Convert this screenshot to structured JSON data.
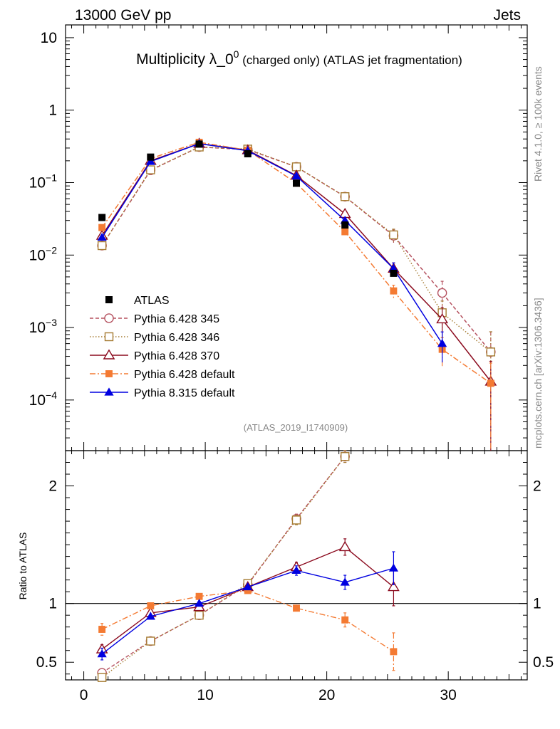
{
  "header": {
    "left_label": "13000 GeV pp",
    "right_label": "Jets",
    "title_main": "Multiplicity λ_0",
    "title_sup": "0",
    "title_tail": " (charged only) (ATLAS jet fragmentation)",
    "analysis_id": "(ATLAS_2019_I1740909)",
    "side_rivet": "Rivet 4.1.0, ≥ 100k events",
    "side_site": "mcplots.cern.ch [arXiv:1306.3436]"
  },
  "chart_data": {
    "type": "line",
    "title": "Multiplicity λ_0^0 (charged only) (ATLAS jet fragmentation)",
    "x": [
      1.5,
      5.5,
      9.5,
      13.5,
      17.5,
      21.5,
      25.5,
      29.5,
      33.5
    ],
    "x_ticks": [
      {
        "v": 0,
        "label": "0"
      },
      {
        "v": 10,
        "label": "10"
      },
      {
        "v": 20,
        "label": "20"
      },
      {
        "v": 30,
        "label": "30"
      }
    ],
    "xlim": [
      -1.5,
      36.5
    ],
    "main_panel": {
      "yscale": "log",
      "ylim": [
        2e-05,
        15
      ],
      "y_ticks": [
        {
          "v": 10,
          "base": "10",
          "exp": ""
        },
        {
          "v": 1,
          "base": "1",
          "exp": ""
        },
        {
          "v": 0.1,
          "base": "10",
          "exp": "−1"
        },
        {
          "v": 0.01,
          "base": "10",
          "exp": "−2"
        },
        {
          "v": 0.001,
          "base": "10",
          "exp": "−3"
        },
        {
          "v": 0.0001,
          "base": "10",
          "exp": "−4"
        }
      ]
    },
    "ratio_panel": {
      "ylabel": "Ratio to ATLAS",
      "ylim": [
        0.35,
        2.3
      ],
      "y_ticks": [
        {
          "v": 0.5,
          "label": "0.5"
        },
        {
          "v": 1,
          "label": "1"
        },
        {
          "v": 2,
          "label": "2"
        }
      ],
      "reference_line": 1
    },
    "data": {
      "name": "ATLAS",
      "values": [
        0.033,
        0.225,
        0.34,
        0.25,
        0.098,
        0.026,
        0.0056,
        null,
        null
      ],
      "color": "#000000"
    },
    "series": [
      {
        "name": "Pythia 6.428 345",
        "color": "#b5515f",
        "marker": "open-circle",
        "dash": "5,3",
        "values": [
          0.0135,
          0.148,
          0.31,
          0.285,
          0.165,
          0.064,
          0.0185,
          0.003,
          0.00046
        ],
        "ratio": [
          0.41,
          0.68,
          0.9,
          1.16,
          1.72,
          2.25,
          null,
          null,
          null
        ],
        "ratio_err": [
          0.02,
          0.02,
          0.02,
          0.02,
          0.04,
          0.05,
          null,
          null,
          null
        ]
      },
      {
        "name": "Pythia 6.428 346",
        "color": "#a67c33",
        "marker": "open-square",
        "dash": "1.5,2.5",
        "values": [
          0.0135,
          0.15,
          0.31,
          0.29,
          0.165,
          0.064,
          0.019,
          0.0016,
          0.00046
        ],
        "ratio": [
          0.37,
          0.68,
          0.9,
          1.17,
          1.71,
          2.25,
          null,
          null,
          null
        ],
        "ratio_err": [
          0.02,
          0.02,
          0.02,
          0.02,
          0.04,
          0.05,
          null,
          null,
          null
        ]
      },
      {
        "name": "Pythia 6.428 370",
        "color": "#8b0a1e",
        "marker": "open-triangle",
        "dash": "",
        "values": [
          0.0185,
          0.2,
          0.345,
          0.28,
          0.125,
          0.037,
          0.0065,
          0.0013,
          0.00018
        ],
        "ratio": [
          0.61,
          0.92,
          0.97,
          1.14,
          1.31,
          1.48,
          1.14,
          null,
          null
        ],
        "ratio_err": [
          0.04,
          0.02,
          0.02,
          0.02,
          0.04,
          0.07,
          0.16,
          null,
          null
        ]
      },
      {
        "name": "Pythia 6.428 default",
        "color": "#f47a32",
        "marker": "filled-square",
        "dash": "8,3,2,3",
        "values": [
          0.024,
          0.215,
          0.36,
          0.28,
          0.098,
          0.021,
          0.0032,
          0.0005,
          0.00017
        ],
        "ratio": [
          0.78,
          0.98,
          1.06,
          1.11,
          0.96,
          0.86,
          0.59,
          null,
          null
        ],
        "ratio_err": [
          0.05,
          0.02,
          0.02,
          0.02,
          0.03,
          0.06,
          0.16,
          null,
          null
        ]
      },
      {
        "name": "Pythia 8.315 default",
        "color": "#0000e0",
        "marker": "filled-triangle",
        "dash": "",
        "values": [
          0.0175,
          0.195,
          0.345,
          0.275,
          0.123,
          0.03,
          0.0065,
          0.0006,
          null
        ],
        "ratio": [
          0.57,
          0.89,
          1.0,
          1.14,
          1.28,
          1.18,
          1.3,
          null,
          null
        ],
        "ratio_err": [
          0.05,
          0.02,
          0.02,
          0.02,
          0.04,
          0.06,
          0.14,
          null,
          null
        ]
      }
    ]
  }
}
